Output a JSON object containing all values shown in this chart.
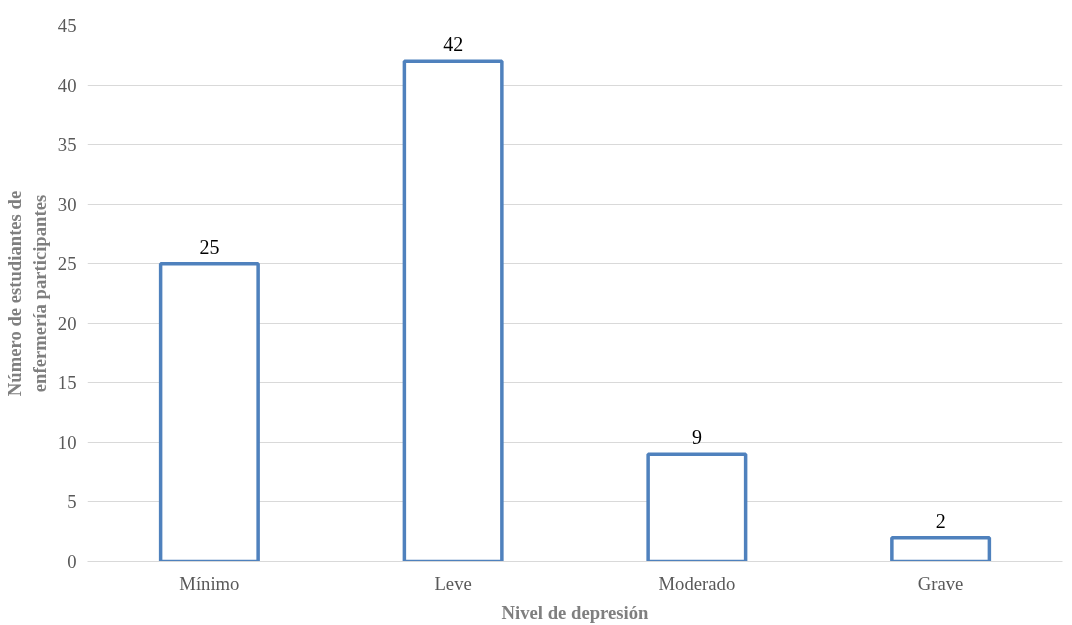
{
  "chart_data": {
    "type": "bar",
    "xlabel": "Nivel de depresión",
    "ylabel": "Número de estudiantes de\nenfermería participantes",
    "categories": [
      "Mínimo",
      "Leve",
      "Moderado",
      "Grave"
    ],
    "values": [
      25,
      42,
      9,
      2
    ],
    "color": "#4f81bd",
    "ylim": [
      0,
      45
    ],
    "yticks": [
      0,
      5,
      10,
      15,
      20,
      25,
      30,
      35,
      40,
      45
    ],
    "grid": "y",
    "data_labels": true
  }
}
